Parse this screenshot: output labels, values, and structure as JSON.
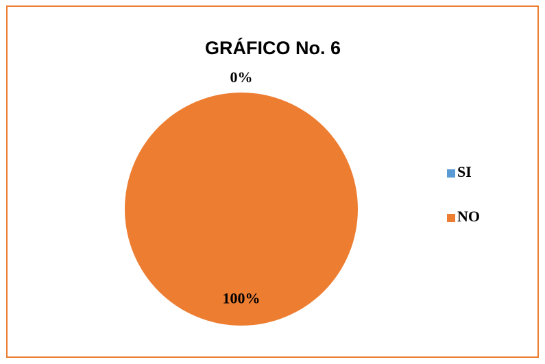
{
  "chart_data": {
    "type": "pie",
    "title": "GRÁFICO No. 6",
    "categories": [
      "SI",
      "NO"
    ],
    "values": [
      0,
      100
    ],
    "value_labels": [
      "0%",
      "100%"
    ],
    "colors": [
      "#5b9bd5",
      "#ed7d31"
    ],
    "legend": "right"
  }
}
